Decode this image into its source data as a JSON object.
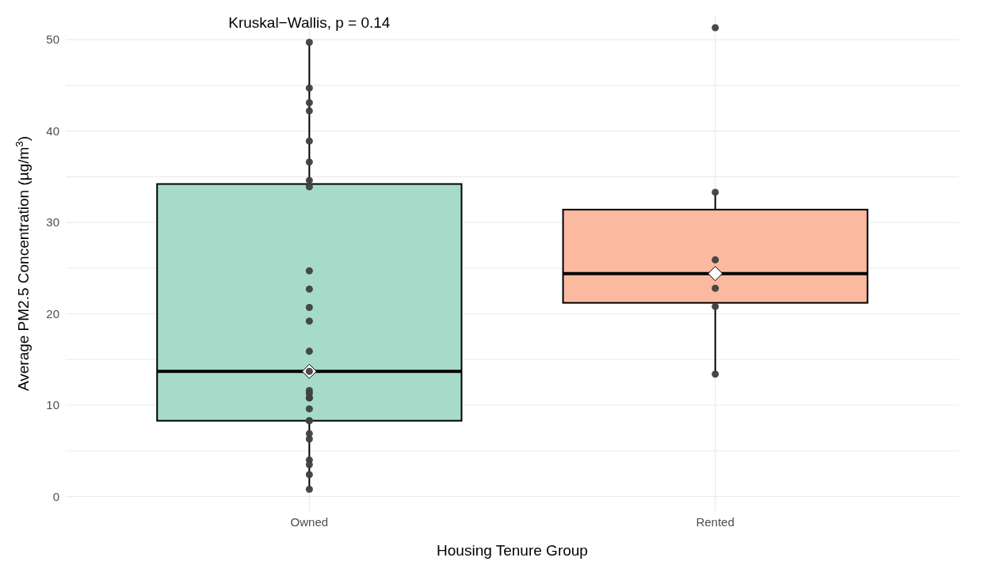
{
  "chart_data": {
    "type": "box",
    "xlabel": "Housing Tenure Group",
    "ylabel": "Average PM2.5 Concentration (µg/m$^{3}$)",
    "annotations": [
      "Kruskal−Wallis, p = 0.14"
    ],
    "categories": [
      "Owned",
      "Rented"
    ],
    "colors": [
      "#a6dbc9",
      "#fbb99f"
    ],
    "boxes": [
      {
        "low": 0.8,
        "q1": 8.3,
        "median": 13.7,
        "q3": 34.2,
        "high": 49.6
      },
      {
        "low": 13.4,
        "q1": 21.2,
        "median": 24.4,
        "q3": 31.4,
        "high": 33.2
      }
    ],
    "series": [
      {
        "type": "scatter",
        "color": "#404040",
        "x": [
          "Owned",
          "Owned",
          "Owned",
          "Owned",
          "Owned",
          "Owned",
          "Owned",
          "Owned",
          "Owned",
          "Owned",
          "Owned",
          "Owned",
          "Owned",
          "Owned",
          "Owned",
          "Owned",
          "Owned",
          "Owned",
          "Owned",
          "Owned",
          "Owned",
          "Owned",
          "Owned",
          "Owned",
          "Owned",
          "Owned",
          "Owned",
          "Rented",
          "Rented",
          "Rented",
          "Rented",
          "Rented",
          "Rented"
        ],
        "values": [
          49.7,
          44.7,
          43.1,
          42.2,
          38.9,
          36.6,
          34.6,
          33.9,
          24.7,
          22.7,
          20.7,
          19.2,
          15.9,
          13.7,
          11.6,
          11.3,
          10.8,
          10.8,
          9.6,
          8.3,
          8.3,
          6.9,
          6.3,
          4.0,
          3.5,
          2.4,
          0.8,
          51.3,
          33.3,
          25.9,
          22.8,
          20.8,
          13.4
        ]
      }
    ],
    "ylim": [
      -1.6,
      52.6
    ],
    "yticks": [
      0,
      10,
      20,
      30,
      40,
      50
    ],
    "grid": true,
    "marker": "circle"
  }
}
